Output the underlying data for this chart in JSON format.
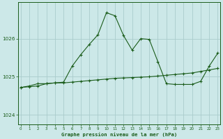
{
  "title": "Graphe pression niveau de la mer (hPa)",
  "bg_color": "#cce8e8",
  "line_color": "#1a5c1a",
  "grid_color": "#aacccc",
  "x_ticks": [
    0,
    1,
    2,
    3,
    4,
    5,
    6,
    7,
    8,
    9,
    10,
    11,
    12,
    13,
    14,
    15,
    16,
    17,
    18,
    19,
    20,
    21,
    22,
    23
  ],
  "y_ticks": [
    1024,
    1025,
    1026
  ],
  "ylim": [
    1023.75,
    1026.95
  ],
  "xlim": [
    -0.3,
    23.3
  ],
  "series1_x": [
    0,
    1,
    2,
    3,
    4,
    5,
    6,
    7,
    8,
    9,
    10,
    11,
    12,
    13,
    14,
    15,
    16,
    17,
    18,
    19,
    20,
    21,
    22,
    23
  ],
  "series1_y": [
    1024.72,
    1024.74,
    1024.76,
    1024.82,
    1024.84,
    1024.84,
    1024.86,
    1024.88,
    1024.9,
    1024.92,
    1024.94,
    1024.96,
    1024.97,
    1024.98,
    1024.99,
    1025.0,
    1025.02,
    1025.04,
    1025.06,
    1025.08,
    1025.1,
    1025.14,
    1025.18,
    1025.22
  ],
  "series2_x": [
    0,
    1,
    2,
    3,
    4,
    5,
    6,
    7,
    8,
    9,
    10,
    11,
    12,
    13,
    14,
    15,
    16,
    17,
    18,
    19,
    20,
    21,
    22,
    23
  ],
  "series2_y": [
    1024.72,
    1024.76,
    1024.82,
    1024.82,
    1024.84,
    1024.86,
    1025.28,
    1025.58,
    1025.85,
    1026.1,
    1026.68,
    1026.6,
    1026.08,
    1025.7,
    1026.0,
    1025.98,
    1025.4,
    1024.82,
    1024.8,
    1024.8,
    1024.8,
    1024.88,
    1025.28,
    1025.62
  ]
}
